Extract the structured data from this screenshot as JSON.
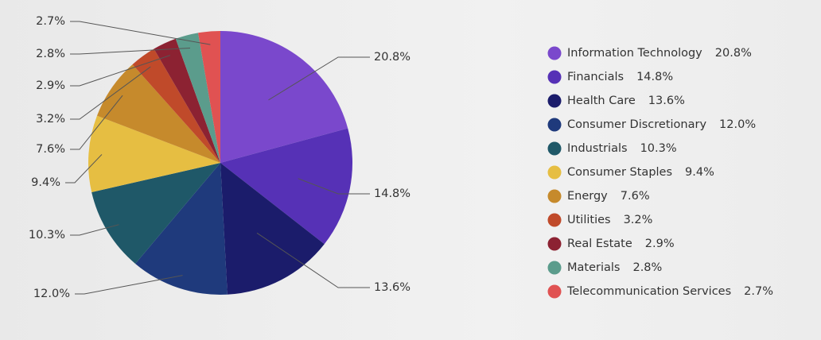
{
  "chart_data": {
    "type": "pie",
    "categories": [
      "Information Technology",
      "Financials",
      "Health Care",
      "Consumer Discretionary",
      "Industrials",
      "Consumer Staples",
      "Energy",
      "Utilities",
      "Real Estate",
      "Materials",
      "Telecommunication Services"
    ],
    "values": [
      20.8,
      14.8,
      13.6,
      12.0,
      10.3,
      9.4,
      7.6,
      3.2,
      2.9,
      2.8,
      2.7
    ],
    "value_labels": [
      "20.8%",
      "14.8%",
      "13.6%",
      "12.0%",
      "10.3%",
      "9.4%",
      "7.6%",
      "3.2%",
      "2.9%",
      "2.8%",
      "2.7%"
    ],
    "colors": [
      "#7a48cc",
      "#5631b6",
      "#1b1c6b",
      "#1f3a7c",
      "#1f5868",
      "#e6be42",
      "#c68a2c",
      "#c04a2a",
      "#8c2232",
      "#5b9c8c",
      "#e05252"
    ],
    "legend": "right"
  }
}
